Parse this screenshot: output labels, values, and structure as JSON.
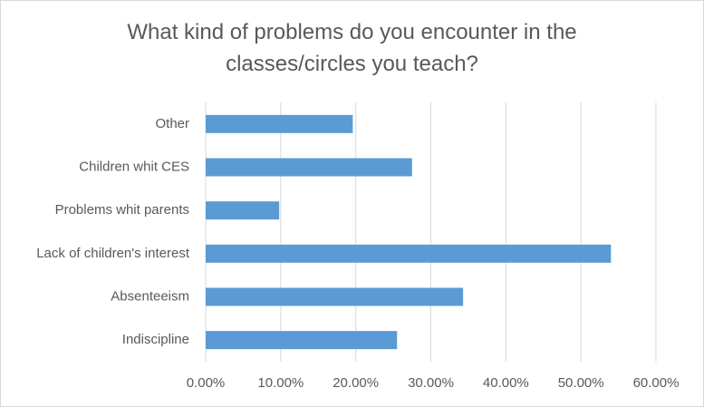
{
  "chart_data": {
    "type": "hbar",
    "title": "What kind of problems do you encounter in the classes/circles you teach?",
    "categories": [
      "Indiscipline",
      "Absenteeism",
      "Lack of children's interest",
      "Problems whit parents",
      "Children whit CES",
      "Other"
    ],
    "values": [
      25.5,
      34.3,
      54.0,
      9.8,
      27.5,
      19.6
    ],
    "color": "#5b9bd5",
    "xlim": [
      0,
      60
    ],
    "xticks": [
      {
        "value": 0,
        "label": "0.00%"
      },
      {
        "value": 10,
        "label": "10.00%"
      },
      {
        "value": 20,
        "label": "20.00%"
      },
      {
        "value": 30,
        "label": "30.00%"
      },
      {
        "value": 40,
        "label": "40.00%"
      },
      {
        "value": 50,
        "label": "50.00%"
      },
      {
        "value": 60,
        "label": "60.00%"
      }
    ],
    "grid": true
  }
}
